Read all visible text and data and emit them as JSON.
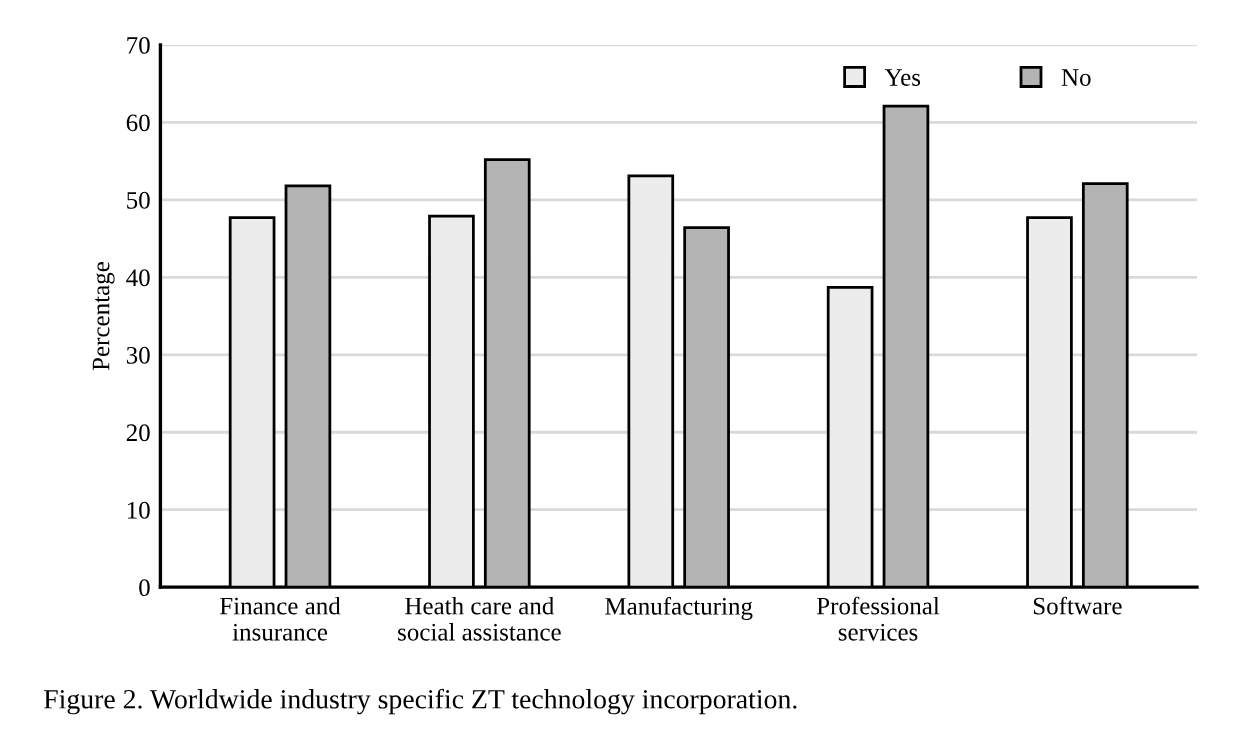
{
  "chart_data": {
    "type": "bar",
    "ylabel": "Percentage",
    "categories": [
      "Finance and\ninsurance",
      "Heath care and\nsocial assistance",
      "Manufacturing",
      "Professional\nservices",
      "Software"
    ],
    "series": [
      {
        "name": "Yes",
        "color": "#ececec",
        "values": [
          47.7,
          47.9,
          53.1,
          38.7,
          47.7
        ]
      },
      {
        "name": "No",
        "color": "#b4b4b4",
        "values": [
          51.8,
          55.2,
          46.4,
          62.1,
          52.1
        ]
      }
    ],
    "ylim": [
      0,
      70
    ],
    "yticks": [
      0,
      10,
      20,
      30,
      40,
      50,
      60,
      70
    ],
    "grid": "y",
    "legend": "top right",
    "annotations": [
      "Figure 2. Worldwide industry specific ZT technology incorporation."
    ]
  }
}
